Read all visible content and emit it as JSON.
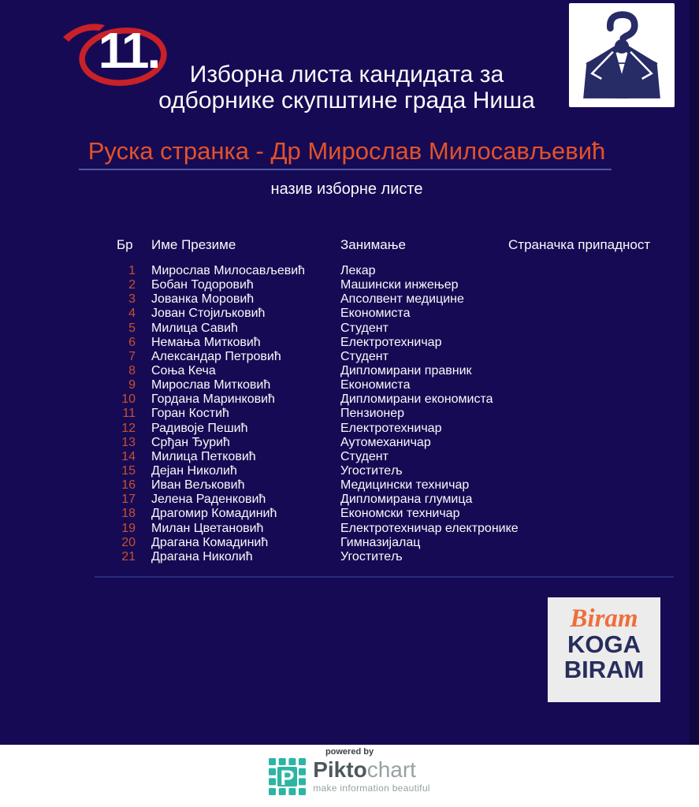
{
  "poster": {
    "ballot_number": "11.",
    "title_line1": "Изборна листа кандидата за",
    "title_line2": "одборнике скупштине града Ниша",
    "list_name": "Руска странка - Др Мирослав Милосављевић",
    "list_name_caption": "назив изборне листе"
  },
  "table": {
    "headers": {
      "number": "Бр",
      "name": "Име Презиме",
      "occupation": "Занимање",
      "party": "Страначка припадност"
    },
    "rows": [
      {
        "n": "1",
        "name": "Мирослав Милосављевић",
        "occ": "Лекар"
      },
      {
        "n": "2",
        "name": "Бобан Тодоровић",
        "occ": "Машински инжењер"
      },
      {
        "n": "3",
        "name": "Јованка Моровић",
        "occ": "Апсолвент медицине"
      },
      {
        "n": "4",
        "name": "Јован Стојиљковић",
        "occ": "Економиста"
      },
      {
        "n": "5",
        "name": "Милица Савић",
        "occ": "Студент"
      },
      {
        "n": "6",
        "name": "Немања Митковић",
        "occ": "Електротехничар"
      },
      {
        "n": "7",
        "name": "Александар Петровић",
        "occ": "Студент"
      },
      {
        "n": "8",
        "name": "Соња Кеча",
        "occ": "Дипломирани правник"
      },
      {
        "n": "9",
        "name": "Мирослав Митковић",
        "occ": "Економиста"
      },
      {
        "n": "10",
        "name": "Гордана Маринковић",
        "occ": "Дипломирани економиста"
      },
      {
        "n": "11",
        "name": "Горан Костић",
        "occ": "Пензионер"
      },
      {
        "n": "12",
        "name": "Радивоје Пешић",
        "occ": "Електротехничар"
      },
      {
        "n": "13",
        "name": "Срђан Ђурић",
        "occ": "Аутомеханичар"
      },
      {
        "n": "14",
        "name": "Милица Петковић",
        "occ": "Студент"
      },
      {
        "n": "15",
        "name": "Дејан Николић",
        "occ": "Угоститељ"
      },
      {
        "n": "16",
        "name": "Иван Вељковић",
        "occ": "Медицински техничар"
      },
      {
        "n": "17",
        "name": "Јелена Раденковић",
        "occ": "Дипломирана глумица"
      },
      {
        "n": "18",
        "name": "Драгомир Комадинић",
        "occ": "Економски техничар"
      },
      {
        "n": "19",
        "name": "Милан Цветановић",
        "occ": "Електротехничар електронике"
      },
      {
        "n": "20",
        "name": "Драгана Комадинић",
        "occ": "Гимназијалац"
      },
      {
        "n": "21",
        "name": "Драгана Николић",
        "occ": "Угоститељ"
      }
    ]
  },
  "logos": {
    "suit_hanger_icon": "suit-jacket-on-question-mark-hanger",
    "biram": {
      "line1": "Biram",
      "line2": "KOGA",
      "line3": "BIRAM"
    },
    "footer": {
      "powered_by": "powered by",
      "brand_bold": "Pikto",
      "brand_light": "chart",
      "brand_icon_letter": "P",
      "tagline": "make information beautiful"
    }
  },
  "colors": {
    "bg_navy": "#170a54",
    "edge_navy": "#110740",
    "accent_red": "#c92128",
    "accent_orange": "#e2522a",
    "number_orange": "#c7502e",
    "text_white": "#fafafa",
    "underline_blue": "#4d59a6",
    "divider_blue": "#272b7a",
    "logo_navy": "#272b66",
    "biram_bg": "#ececec",
    "biram_orange": "#ee6f3c",
    "biram_navy": "#272e5d",
    "pikto_teal": "#2cb5a4",
    "pikto_dark": "#4e585c",
    "pikto_light": "#97a1a3"
  }
}
